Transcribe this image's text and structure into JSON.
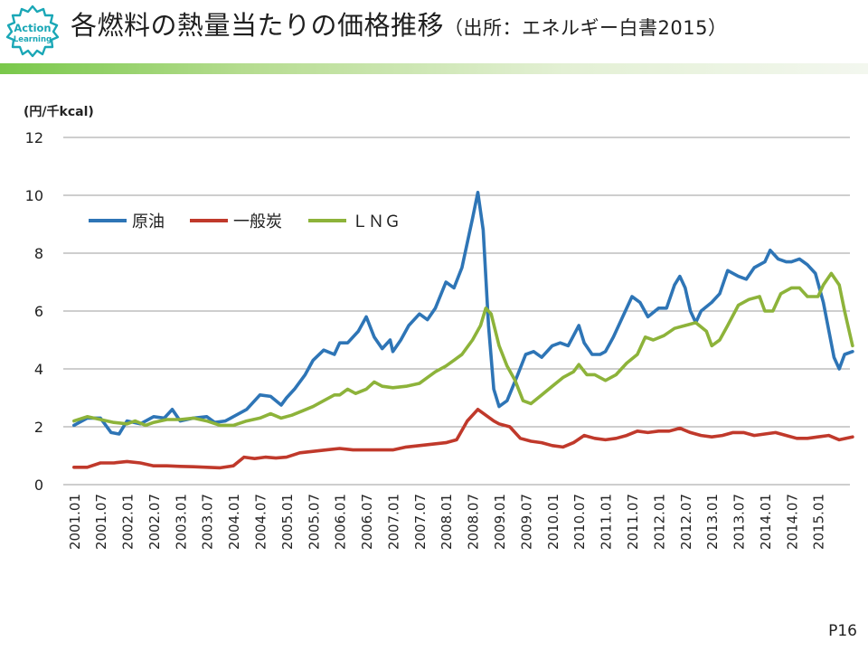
{
  "slide": {
    "title": "各燃料の熱量当たりの価格推移",
    "source": "（出所：エネルギー白書2015）",
    "page": "P16"
  },
  "logo": {
    "line1": "Action",
    "line2": "Learning",
    "color": "#1aa7b6"
  },
  "colors": {
    "title_bar": "#79c84a",
    "grid": "#9e9e9e"
  },
  "chart_data": {
    "type": "line",
    "title": "",
    "ylabel": "(円/千kcal)",
    "xlabel": "",
    "ylim": [
      0,
      12
    ],
    "yticks": [
      0,
      2,
      4,
      6,
      8,
      10,
      12
    ],
    "grid": true,
    "legend_position": "top-left",
    "categories": [
      "2001.01",
      "2001.07",
      "2002.01",
      "2002.07",
      "2003.01",
      "2003.07",
      "2004.01",
      "2004.07",
      "2005.01",
      "2005.07",
      "2006.01",
      "2006.07",
      "2007.01",
      "2007.07",
      "2008.01",
      "2008.07",
      "2009.01",
      "2009.07",
      "2010.01",
      "2010.07",
      "2011.01",
      "2011.07",
      "2012.01",
      "2012.07",
      "2013.01",
      "2013.07",
      "2014.01",
      "2014.07",
      "2015.01"
    ],
    "series": [
      {
        "name": "原油",
        "color": "#2e75b6",
        "points": [
          [
            0,
            2.05
          ],
          [
            0.5,
            2.3
          ],
          [
            1,
            2.3
          ],
          [
            1.4,
            1.8
          ],
          [
            1.7,
            1.75
          ],
          [
            2,
            2.2
          ],
          [
            2.5,
            2.1
          ],
          [
            3,
            2.35
          ],
          [
            3.4,
            2.3
          ],
          [
            3.7,
            2.6
          ],
          [
            4,
            2.2
          ],
          [
            4.5,
            2.3
          ],
          [
            5,
            2.35
          ],
          [
            5.3,
            2.15
          ],
          [
            5.7,
            2.2
          ],
          [
            6,
            2.35
          ],
          [
            6.5,
            2.6
          ],
          [
            7,
            3.1
          ],
          [
            7.4,
            3.05
          ],
          [
            7.8,
            2.75
          ],
          [
            8,
            3.0
          ],
          [
            8.3,
            3.3
          ],
          [
            8.7,
            3.8
          ],
          [
            9,
            4.3
          ],
          [
            9.4,
            4.65
          ],
          [
            9.8,
            4.5
          ],
          [
            10,
            4.9
          ],
          [
            10.3,
            4.9
          ],
          [
            10.7,
            5.3
          ],
          [
            11,
            5.8
          ],
          [
            11.3,
            5.1
          ],
          [
            11.6,
            4.7
          ],
          [
            11.9,
            5.0
          ],
          [
            12,
            4.6
          ],
          [
            12.3,
            5.0
          ],
          [
            12.6,
            5.5
          ],
          [
            13,
            5.9
          ],
          [
            13.3,
            5.7
          ],
          [
            13.6,
            6.1
          ],
          [
            14,
            7.0
          ],
          [
            14.3,
            6.8
          ],
          [
            14.6,
            7.5
          ],
          [
            15,
            9.2
          ],
          [
            15.2,
            10.1
          ],
          [
            15.4,
            8.8
          ],
          [
            15.6,
            5.5
          ],
          [
            15.8,
            3.3
          ],
          [
            16,
            2.7
          ],
          [
            16.3,
            2.9
          ],
          [
            16.7,
            3.8
          ],
          [
            17,
            4.5
          ],
          [
            17.3,
            4.6
          ],
          [
            17.6,
            4.4
          ],
          [
            18,
            4.8
          ],
          [
            18.3,
            4.9
          ],
          [
            18.6,
            4.8
          ],
          [
            19,
            5.5
          ],
          [
            19.2,
            4.9
          ],
          [
            19.5,
            4.5
          ],
          [
            19.8,
            4.5
          ],
          [
            20,
            4.6
          ],
          [
            20.3,
            5.1
          ],
          [
            20.6,
            5.7
          ],
          [
            21,
            6.5
          ],
          [
            21.3,
            6.3
          ],
          [
            21.6,
            5.8
          ],
          [
            22,
            6.1
          ],
          [
            22.3,
            6.1
          ],
          [
            22.6,
            6.9
          ],
          [
            22.8,
            7.2
          ],
          [
            23,
            6.8
          ],
          [
            23.2,
            6.0
          ],
          [
            23.4,
            5.6
          ],
          [
            23.6,
            6.0
          ],
          [
            24,
            6.3
          ],
          [
            24.3,
            6.6
          ],
          [
            24.6,
            7.4
          ],
          [
            25,
            7.2
          ],
          [
            25.3,
            7.1
          ],
          [
            25.6,
            7.5
          ],
          [
            26,
            7.7
          ],
          [
            26.2,
            8.1
          ],
          [
            26.5,
            7.8
          ],
          [
            26.8,
            7.7
          ],
          [
            27,
            7.7
          ],
          [
            27.3,
            7.8
          ],
          [
            27.6,
            7.6
          ],
          [
            27.9,
            7.3
          ],
          [
            28.2,
            6.3
          ],
          [
            28.6,
            4.4
          ],
          [
            28.8,
            4.0
          ],
          [
            29,
            4.5
          ],
          [
            29.3,
            4.6
          ]
        ]
      },
      {
        "name": "一般炭",
        "color": "#c0392b",
        "points": [
          [
            0,
            0.6
          ],
          [
            0.5,
            0.6
          ],
          [
            1,
            0.75
          ],
          [
            1.5,
            0.75
          ],
          [
            2,
            0.8
          ],
          [
            2.5,
            0.75
          ],
          [
            3,
            0.65
          ],
          [
            3.5,
            0.65
          ],
          [
            4,
            0.63
          ],
          [
            4.5,
            0.62
          ],
          [
            5,
            0.6
          ],
          [
            5.5,
            0.58
          ],
          [
            6,
            0.65
          ],
          [
            6.4,
            0.95
          ],
          [
            6.8,
            0.9
          ],
          [
            7.2,
            0.95
          ],
          [
            7.6,
            0.92
          ],
          [
            8,
            0.95
          ],
          [
            8.5,
            1.1
          ],
          [
            9,
            1.15
          ],
          [
            9.5,
            1.2
          ],
          [
            10,
            1.25
          ],
          [
            10.5,
            1.2
          ],
          [
            11,
            1.2
          ],
          [
            11.5,
            1.2
          ],
          [
            12,
            1.2
          ],
          [
            12.5,
            1.3
          ],
          [
            13,
            1.35
          ],
          [
            13.5,
            1.4
          ],
          [
            14,
            1.45
          ],
          [
            14.4,
            1.55
          ],
          [
            14.8,
            2.2
          ],
          [
            15.2,
            2.6
          ],
          [
            15.5,
            2.4
          ],
          [
            15.8,
            2.2
          ],
          [
            16,
            2.1
          ],
          [
            16.4,
            2.0
          ],
          [
            16.8,
            1.6
          ],
          [
            17.2,
            1.5
          ],
          [
            17.6,
            1.45
          ],
          [
            18,
            1.35
          ],
          [
            18.4,
            1.3
          ],
          [
            18.8,
            1.45
          ],
          [
            19.2,
            1.7
          ],
          [
            19.6,
            1.6
          ],
          [
            20,
            1.55
          ],
          [
            20.4,
            1.6
          ],
          [
            20.8,
            1.7
          ],
          [
            21.2,
            1.85
          ],
          [
            21.6,
            1.8
          ],
          [
            22,
            1.85
          ],
          [
            22.4,
            1.85
          ],
          [
            22.8,
            1.95
          ],
          [
            23.2,
            1.8
          ],
          [
            23.6,
            1.7
          ],
          [
            24,
            1.65
          ],
          [
            24.4,
            1.7
          ],
          [
            24.8,
            1.8
          ],
          [
            25.2,
            1.8
          ],
          [
            25.6,
            1.7
          ],
          [
            26,
            1.75
          ],
          [
            26.4,
            1.8
          ],
          [
            26.8,
            1.7
          ],
          [
            27.2,
            1.6
          ],
          [
            27.6,
            1.6
          ],
          [
            28,
            1.65
          ],
          [
            28.4,
            1.7
          ],
          [
            28.8,
            1.55
          ],
          [
            29.3,
            1.65
          ]
        ]
      },
      {
        "name": "ＬＮＧ",
        "color": "#8db33a",
        "points": [
          [
            0,
            2.2
          ],
          [
            0.5,
            2.35
          ],
          [
            1,
            2.25
          ],
          [
            1.5,
            2.15
          ],
          [
            2,
            2.1
          ],
          [
            2.3,
            2.2
          ],
          [
            2.7,
            2.05
          ],
          [
            3,
            2.15
          ],
          [
            3.5,
            2.25
          ],
          [
            4,
            2.25
          ],
          [
            4.5,
            2.3
          ],
          [
            5,
            2.2
          ],
          [
            5.5,
            2.05
          ],
          [
            6,
            2.05
          ],
          [
            6.5,
            2.2
          ],
          [
            7,
            2.3
          ],
          [
            7.4,
            2.45
          ],
          [
            7.8,
            2.3
          ],
          [
            8.2,
            2.4
          ],
          [
            8.6,
            2.55
          ],
          [
            9,
            2.7
          ],
          [
            9.4,
            2.9
          ],
          [
            9.8,
            3.1
          ],
          [
            10,
            3.1
          ],
          [
            10.3,
            3.3
          ],
          [
            10.6,
            3.15
          ],
          [
            11,
            3.3
          ],
          [
            11.3,
            3.55
          ],
          [
            11.6,
            3.4
          ],
          [
            12,
            3.35
          ],
          [
            12.5,
            3.4
          ],
          [
            13,
            3.5
          ],
          [
            13.3,
            3.7
          ],
          [
            13.6,
            3.9
          ],
          [
            14,
            4.1
          ],
          [
            14.3,
            4.3
          ],
          [
            14.6,
            4.5
          ],
          [
            15,
            5.0
          ],
          [
            15.3,
            5.5
          ],
          [
            15.5,
            6.1
          ],
          [
            15.7,
            5.9
          ],
          [
            16,
            4.8
          ],
          [
            16.3,
            4.1
          ],
          [
            16.6,
            3.6
          ],
          [
            16.9,
            2.9
          ],
          [
            17.2,
            2.8
          ],
          [
            17.6,
            3.1
          ],
          [
            18,
            3.4
          ],
          [
            18.4,
            3.7
          ],
          [
            18.8,
            3.9
          ],
          [
            19,
            4.15
          ],
          [
            19.3,
            3.8
          ],
          [
            19.6,
            3.8
          ],
          [
            20,
            3.6
          ],
          [
            20.4,
            3.8
          ],
          [
            20.8,
            4.2
          ],
          [
            21.2,
            4.5
          ],
          [
            21.5,
            5.1
          ],
          [
            21.8,
            5.0
          ],
          [
            22.2,
            5.15
          ],
          [
            22.6,
            5.4
          ],
          [
            23,
            5.5
          ],
          [
            23.4,
            5.6
          ],
          [
            23.8,
            5.3
          ],
          [
            24,
            4.8
          ],
          [
            24.3,
            5.0
          ],
          [
            24.6,
            5.5
          ],
          [
            25,
            6.2
          ],
          [
            25.4,
            6.4
          ],
          [
            25.8,
            6.5
          ],
          [
            26,
            6.0
          ],
          [
            26.3,
            6.0
          ],
          [
            26.6,
            6.6
          ],
          [
            27,
            6.8
          ],
          [
            27.3,
            6.8
          ],
          [
            27.6,
            6.5
          ],
          [
            28,
            6.5
          ],
          [
            28.2,
            6.9
          ],
          [
            28.5,
            7.3
          ],
          [
            28.8,
            6.9
          ],
          [
            29,
            6.0
          ],
          [
            29.3,
            4.8
          ]
        ]
      }
    ]
  }
}
